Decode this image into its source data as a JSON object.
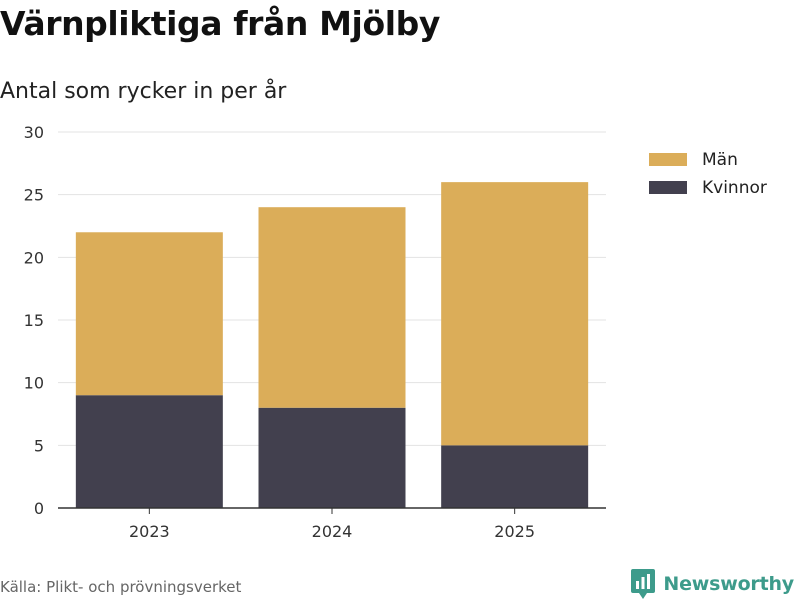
{
  "title": "Värnpliktiga från Mjölby",
  "subtitle": "Antal som rycker in per år",
  "source": "Källa: Plikt- och prövningsverket",
  "brand": {
    "name": "Newsworthy",
    "color": "#3d9b8b",
    "icon": "newsworthy-logo-icon"
  },
  "chart_data": {
    "type": "bar",
    "stacked": true,
    "categories": [
      "2023",
      "2024",
      "2025"
    ],
    "series": [
      {
        "name": "Kvinnor",
        "values": [
          9,
          8,
          5
        ],
        "color": "#42404e"
      },
      {
        "name": "Män",
        "values": [
          13,
          16,
          21
        ],
        "color": "#dbad59"
      }
    ],
    "legend_order": [
      "Män",
      "Kvinnor"
    ],
    "legend_position": "top-right",
    "ylim": [
      0,
      30
    ],
    "yticks": [
      0,
      5,
      10,
      15,
      20,
      25,
      30
    ],
    "grid": true,
    "xlabel": "",
    "ylabel": ""
  }
}
